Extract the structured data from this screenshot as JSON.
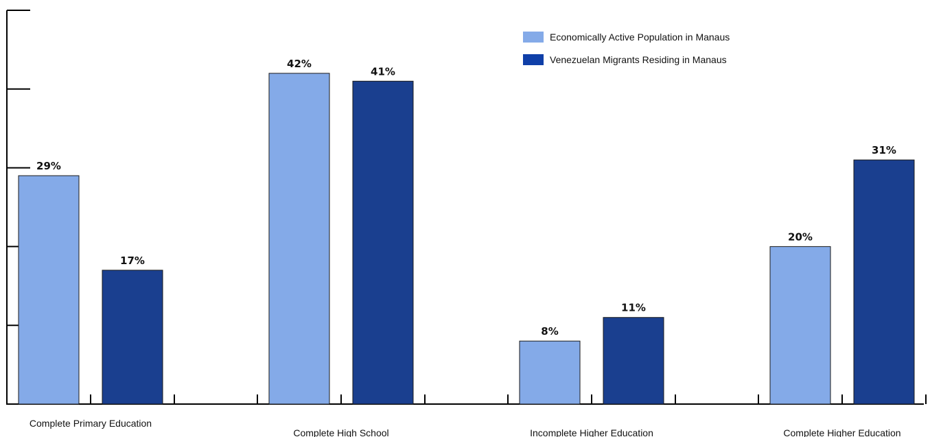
{
  "chart_data": {
    "type": "bar",
    "title": "",
    "xlabel": "",
    "ylabel": "",
    "ylim": [
      0,
      50
    ],
    "y_tick_values": [
      0,
      10,
      20,
      30,
      40,
      50
    ],
    "y_tick_labels_shown": false,
    "grid": false,
    "legend_position": "top-right",
    "categories": [
      "Complete Primary Education",
      "Complete High School",
      "Incomplete Higher Education",
      "Complete Higher Education"
    ],
    "series": [
      {
        "name": "Economically Active Population in Manaus",
        "color": "#84aae8",
        "values": [
          29,
          42,
          8,
          20
        ],
        "labels": [
          "29%",
          "42%",
          "8%",
          "20%"
        ]
      },
      {
        "name": "Venezuelan Migrants Residing in Manaus",
        "color": "#1a3f8f",
        "values": [
          17,
          41,
          11,
          31
        ],
        "labels": [
          "17%",
          "41%",
          "11%",
          "31%"
        ]
      }
    ]
  },
  "colors": {
    "legend_swatch_1": "#84aae8",
    "legend_swatch_2": "#0f3fa8",
    "axis": "#000000"
  }
}
